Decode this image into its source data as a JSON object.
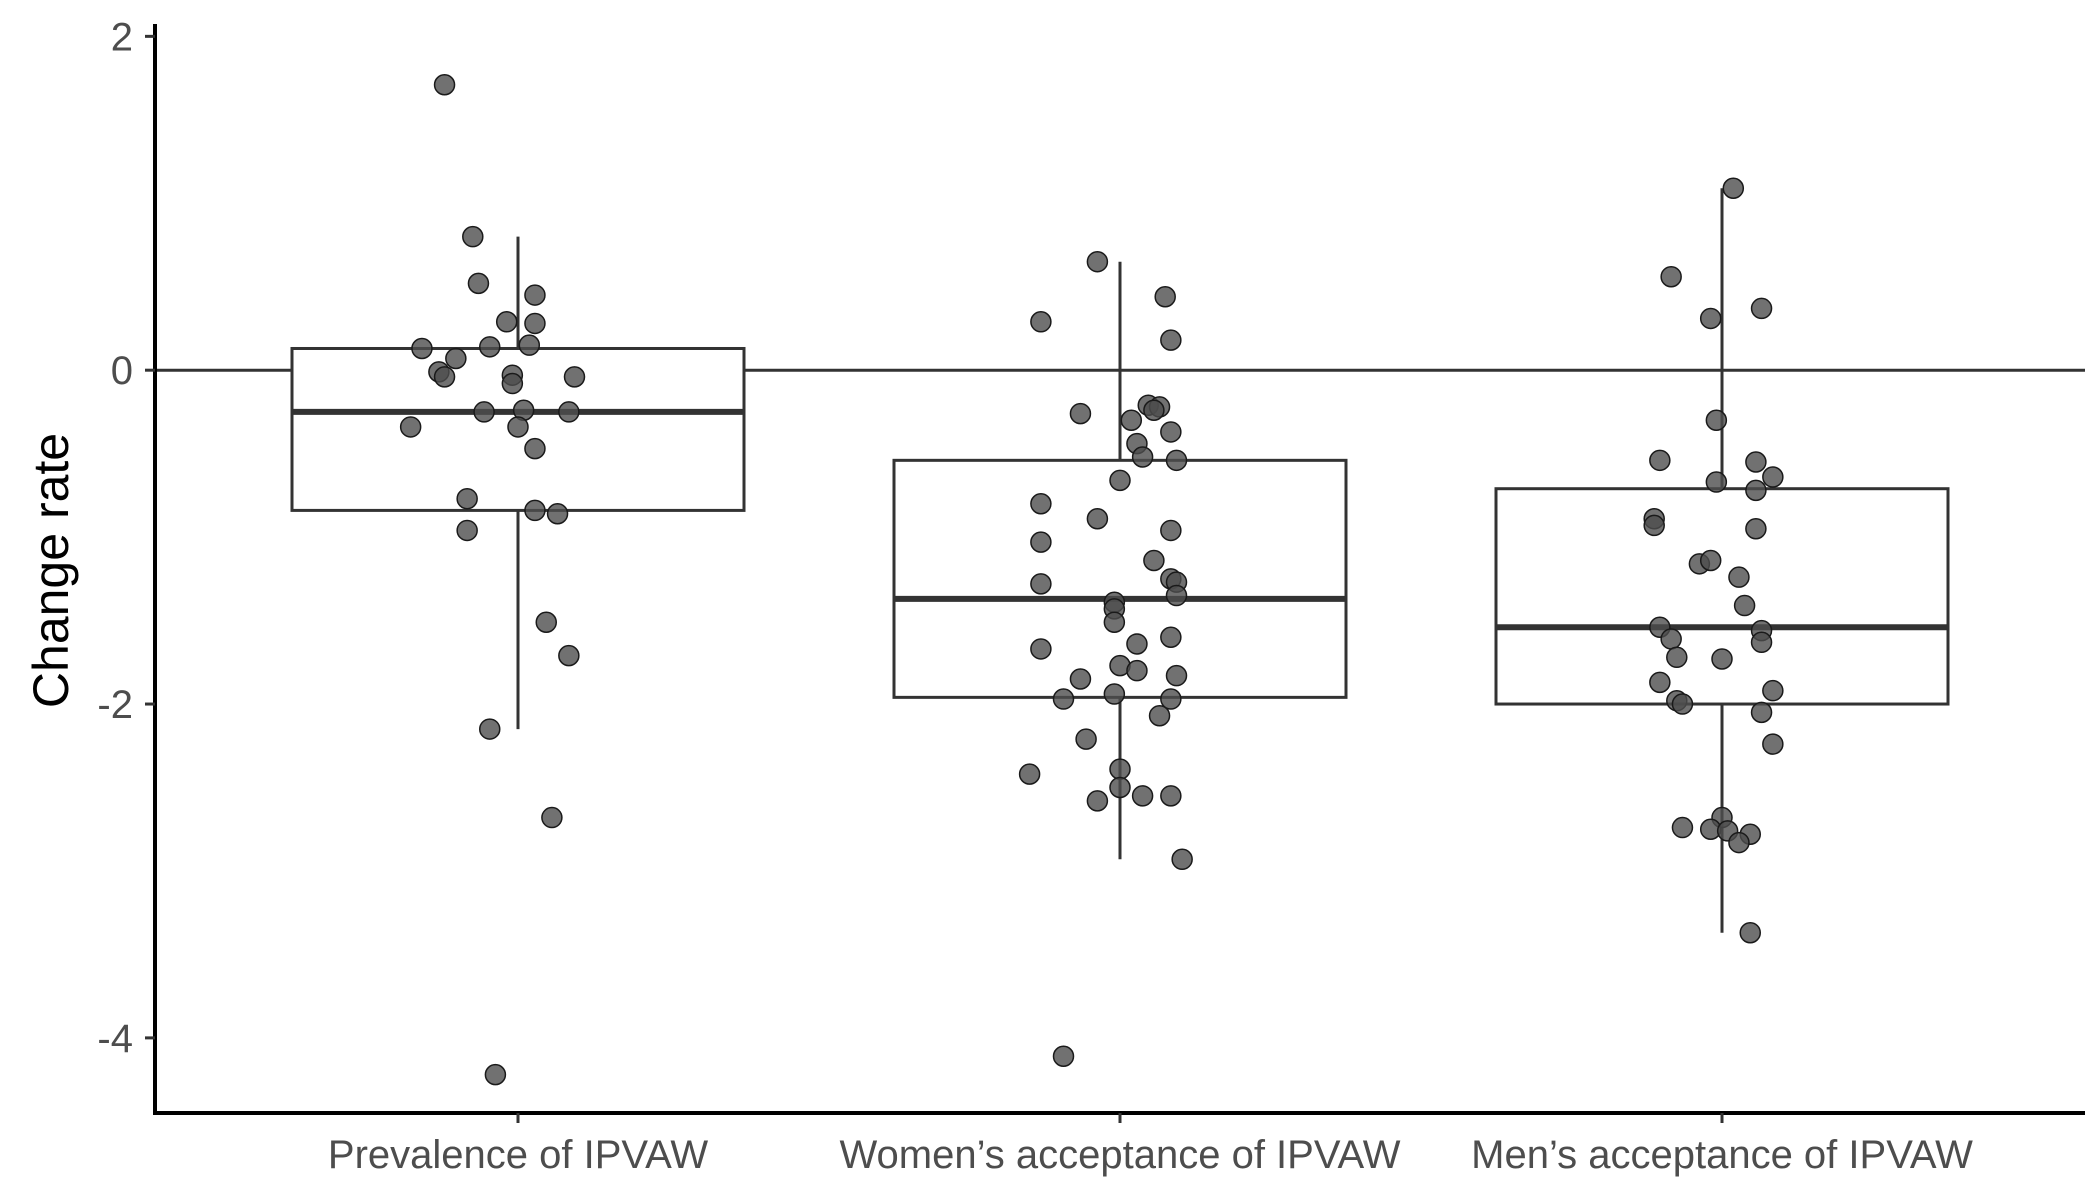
{
  "chart_data": {
    "type": "box",
    "ylabel": "Change rate",
    "xlabel": "",
    "ylim": [
      -4.45,
      2.05
    ],
    "y_ticks": [
      "2",
      "0",
      "-2",
      "-4"
    ],
    "grid": false,
    "reference_line_y": 0,
    "colors": {
      "points": "#4d4d4d",
      "box_stroke": "#333333",
      "axis": "#000000"
    },
    "categories": [
      "Prevalence of IPVAW",
      "Women’s acceptance of IPVAW",
      "Men’s acceptance of IPVAW"
    ],
    "boxes": [
      {
        "lower_whisker": -2.15,
        "q1": -0.84,
        "median": -0.25,
        "q3": 0.13,
        "upper_whisker": 0.8
      },
      {
        "lower_whisker": -2.93,
        "q1": -1.96,
        "median": -1.37,
        "q3": -0.54,
        "upper_whisker": 0.65
      },
      {
        "lower_whisker": -3.37,
        "q1": -2.0,
        "median": -1.54,
        "q3": -0.71,
        "upper_whisker": 1.09
      }
    ],
    "points": [
      [
        {
          "x": -0.13,
          "y": 1.71
        },
        {
          "x": -0.08,
          "y": 0.8
        },
        {
          "x": -0.07,
          "y": 0.52
        },
        {
          "x": 0.03,
          "y": 0.45
        },
        {
          "x": -0.02,
          "y": 0.29
        },
        {
          "x": 0.03,
          "y": 0.28
        },
        {
          "x": -0.17,
          "y": 0.13
        },
        {
          "x": -0.05,
          "y": 0.14
        },
        {
          "x": 0.02,
          "y": 0.15
        },
        {
          "x": -0.11,
          "y": 0.07
        },
        {
          "x": -0.14,
          "y": -0.01
        },
        {
          "x": -0.01,
          "y": -0.03
        },
        {
          "x": -0.13,
          "y": -0.04
        },
        {
          "x": 0.1,
          "y": -0.04
        },
        {
          "x": -0.01,
          "y": -0.08
        },
        {
          "x": -0.06,
          "y": -0.25
        },
        {
          "x": 0.01,
          "y": -0.24
        },
        {
          "x": 0.09,
          "y": -0.25
        },
        {
          "x": -0.19,
          "y": -0.34
        },
        {
          "x": 0.0,
          "y": -0.34
        },
        {
          "x": 0.03,
          "y": -0.47
        },
        {
          "x": -0.09,
          "y": -0.77
        },
        {
          "x": 0.03,
          "y": -0.84
        },
        {
          "x": 0.07,
          "y": -0.86
        },
        {
          "x": -0.09,
          "y": -0.96
        },
        {
          "x": 0.05,
          "y": -1.51
        },
        {
          "x": 0.09,
          "y": -1.71
        },
        {
          "x": -0.05,
          "y": -2.15
        },
        {
          "x": 0.06,
          "y": -2.68
        },
        {
          "x": -0.04,
          "y": -4.22
        }
      ],
      [
        {
          "x": -0.04,
          "y": 0.65
        },
        {
          "x": 0.08,
          "y": 0.44
        },
        {
          "x": -0.14,
          "y": 0.29
        },
        {
          "x": 0.09,
          "y": 0.18
        },
        {
          "x": 0.05,
          "y": -0.21
        },
        {
          "x": 0.07,
          "y": -0.22
        },
        {
          "x": 0.06,
          "y": -0.24
        },
        {
          "x": -0.07,
          "y": -0.26
        },
        {
          "x": 0.02,
          "y": -0.3
        },
        {
          "x": 0.09,
          "y": -0.37
        },
        {
          "x": 0.03,
          "y": -0.44
        },
        {
          "x": 0.04,
          "y": -0.52
        },
        {
          "x": 0.1,
          "y": -0.54
        },
        {
          "x": 0.0,
          "y": -0.66
        },
        {
          "x": -0.14,
          "y": -0.8
        },
        {
          "x": -0.04,
          "y": -0.89
        },
        {
          "x": 0.09,
          "y": -0.96
        },
        {
          "x": -0.14,
          "y": -1.03
        },
        {
          "x": 0.06,
          "y": -1.14
        },
        {
          "x": 0.09,
          "y": -1.25
        },
        {
          "x": 0.1,
          "y": -1.27
        },
        {
          "x": -0.14,
          "y": -1.28
        },
        {
          "x": 0.1,
          "y": -1.35
        },
        {
          "x": -0.01,
          "y": -1.39
        },
        {
          "x": -0.01,
          "y": -1.43
        },
        {
          "x": -0.01,
          "y": -1.51
        },
        {
          "x": 0.09,
          "y": -1.6
        },
        {
          "x": 0.03,
          "y": -1.64
        },
        {
          "x": -0.14,
          "y": -1.67
        },
        {
          "x": 0.0,
          "y": -1.77
        },
        {
          "x": 0.03,
          "y": -1.8
        },
        {
          "x": -0.07,
          "y": -1.85
        },
        {
          "x": 0.1,
          "y": -1.83
        },
        {
          "x": -0.01,
          "y": -1.94
        },
        {
          "x": -0.1,
          "y": -1.97
        },
        {
          "x": 0.09,
          "y": -1.97
        },
        {
          "x": 0.07,
          "y": -2.07
        },
        {
          "x": -0.06,
          "y": -2.21
        },
        {
          "x": 0.0,
          "y": -2.39
        },
        {
          "x": -0.16,
          "y": -2.42
        },
        {
          "x": 0.0,
          "y": -2.5
        },
        {
          "x": -0.04,
          "y": -2.58
        },
        {
          "x": 0.04,
          "y": -2.55
        },
        {
          "x": 0.09,
          "y": -2.55
        },
        {
          "x": 0.11,
          "y": -2.93
        },
        {
          "x": -0.1,
          "y": -4.11
        }
      ],
      [
        {
          "x": 0.02,
          "y": 1.09
        },
        {
          "x": -0.09,
          "y": 0.56
        },
        {
          "x": 0.07,
          "y": 0.37
        },
        {
          "x": -0.02,
          "y": 0.31
        },
        {
          "x": -0.01,
          "y": -0.3
        },
        {
          "x": -0.11,
          "y": -0.54
        },
        {
          "x": 0.06,
          "y": -0.55
        },
        {
          "x": -0.01,
          "y": -0.67
        },
        {
          "x": 0.09,
          "y": -0.64
        },
        {
          "x": 0.06,
          "y": -0.72
        },
        {
          "x": -0.12,
          "y": -0.89
        },
        {
          "x": 0.06,
          "y": -0.95
        },
        {
          "x": -0.12,
          "y": -0.93
        },
        {
          "x": -0.04,
          "y": -1.16
        },
        {
          "x": -0.02,
          "y": -1.14
        },
        {
          "x": 0.03,
          "y": -1.24
        },
        {
          "x": 0.04,
          "y": -1.41
        },
        {
          "x": -0.11,
          "y": -1.54
        },
        {
          "x": 0.07,
          "y": -1.56
        },
        {
          "x": -0.09,
          "y": -1.61
        },
        {
          "x": 0.07,
          "y": -1.63
        },
        {
          "x": 0.0,
          "y": -1.73
        },
        {
          "x": -0.08,
          "y": -1.72
        },
        {
          "x": -0.11,
          "y": -1.87
        },
        {
          "x": 0.09,
          "y": -1.92
        },
        {
          "x": -0.08,
          "y": -1.98
        },
        {
          "x": -0.07,
          "y": -2.0
        },
        {
          "x": 0.07,
          "y": -2.05
        },
        {
          "x": 0.09,
          "y": -2.24
        },
        {
          "x": 0.0,
          "y": -2.68
        },
        {
          "x": -0.07,
          "y": -2.74
        },
        {
          "x": -0.02,
          "y": -2.75
        },
        {
          "x": 0.01,
          "y": -2.76
        },
        {
          "x": 0.05,
          "y": -2.78
        },
        {
          "x": 0.03,
          "y": -2.83
        },
        {
          "x": 0.05,
          "y": -3.37
        }
      ]
    ]
  }
}
